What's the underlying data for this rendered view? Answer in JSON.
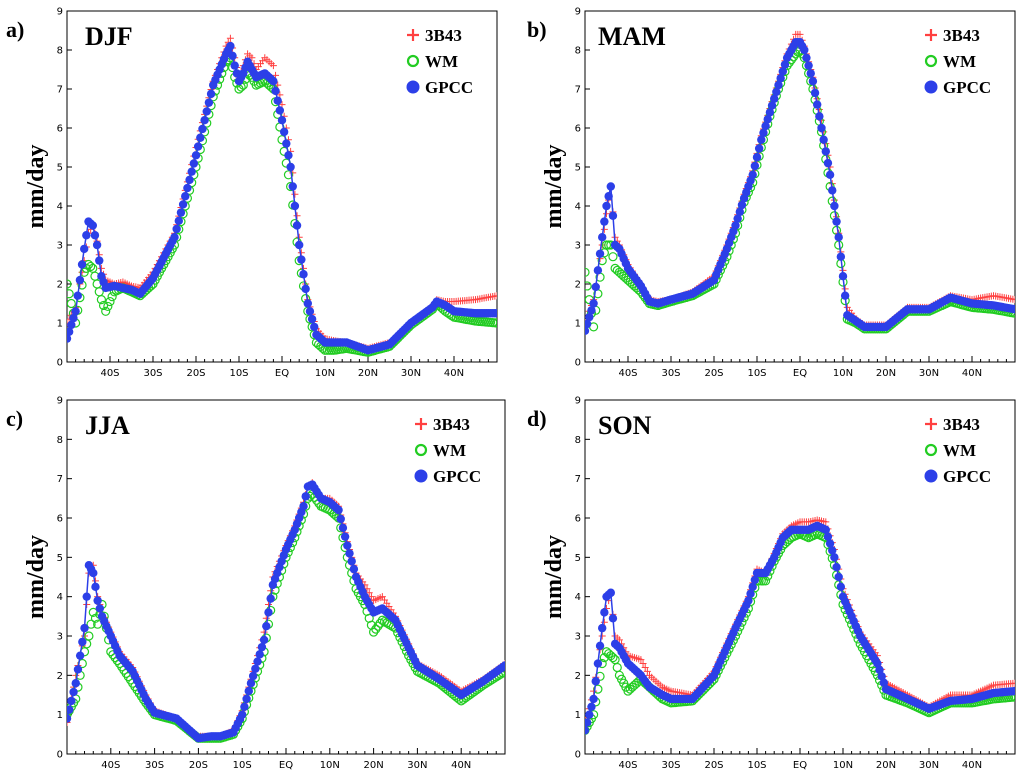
{
  "chart_data": [
    {
      "type": "scatter",
      "panel_label": "a)",
      "title": "DJF",
      "ylabel": "mm/day",
      "xlabel": "",
      "xlim": [
        -50,
        50
      ],
      "ylim": [
        0,
        9
      ],
      "x_ticks": [
        -40,
        -30,
        -20,
        -10,
        0,
        10,
        20,
        30,
        40
      ],
      "x_tick_labels": [
        "40S",
        "30S",
        "20S",
        "10S",
        "EQ",
        "10N",
        "20N",
        "30N",
        "40N"
      ],
      "y_ticks": [
        0,
        1,
        2,
        3,
        4,
        5,
        6,
        7,
        8,
        9
      ],
      "y_tick_labels": [
        "0",
        "1",
        "2",
        "3",
        "4",
        "5",
        "6",
        "7",
        "8",
        "9"
      ],
      "legend_position": "top-right",
      "x": [
        -50,
        -48,
        -46,
        -45,
        -44,
        -43,
        -42,
        -41,
        -39,
        -37,
        -35,
        -33,
        -30,
        -25,
        -20,
        -16,
        -13,
        -12,
        -11,
        -10,
        -9,
        -8,
        -7,
        -6,
        -4,
        -2,
        0,
        2,
        4,
        6,
        8,
        10,
        12,
        15,
        20,
        25,
        30,
        35,
        36,
        38,
        40,
        45,
        50
      ],
      "series": [
        {
          "name": "3B43",
          "color": "#ff4040",
          "marker": "plus",
          "values": [
            1.0,
            1.4,
            2.6,
            3.3,
            3.5,
            3.1,
            2.4,
            2.1,
            2.0,
            2.05,
            1.95,
            1.9,
            2.3,
            3.3,
            5.5,
            7.2,
            8.1,
            8.3,
            7.8,
            7.3,
            7.6,
            7.9,
            7.8,
            7.5,
            7.8,
            7.6,
            6.6,
            5.4,
            3.2,
            1.6,
            0.85,
            0.6,
            0.55,
            0.5,
            0.35,
            0.5,
            1.0,
            1.45,
            1.6,
            1.55,
            1.55,
            1.6,
            1.7
          ]
        },
        {
          "name": "WM",
          "color": "#22cc22",
          "marker": "circle-open",
          "values": [
            2.0,
            1.0,
            2.3,
            2.5,
            2.4,
            2.0,
            1.6,
            1.3,
            1.8,
            1.9,
            1.8,
            1.7,
            2.0,
            3.0,
            5.0,
            6.8,
            7.7,
            7.8,
            7.3,
            7.0,
            7.1,
            7.4,
            7.3,
            7.1,
            7.2,
            7.0,
            5.7,
            4.5,
            2.6,
            1.3,
            0.5,
            0.3,
            0.3,
            0.35,
            0.25,
            0.4,
            0.95,
            1.35,
            1.5,
            1.3,
            1.15,
            1.05,
            1.0
          ]
        },
        {
          "name": "GPCC",
          "color": "#2c3fe8",
          "marker": "circle-filled",
          "values": [
            0.6,
            1.3,
            2.9,
            3.6,
            3.5,
            3.0,
            2.2,
            1.9,
            1.95,
            1.9,
            1.85,
            1.75,
            2.15,
            3.2,
            5.3,
            7.1,
            7.9,
            8.1,
            7.6,
            7.2,
            7.4,
            7.7,
            7.5,
            7.3,
            7.4,
            7.2,
            6.2,
            5.0,
            3.0,
            1.5,
            0.7,
            0.5,
            0.5,
            0.5,
            0.3,
            0.45,
            1.0,
            1.4,
            1.55,
            1.45,
            1.3,
            1.25,
            1.25
          ]
        }
      ]
    },
    {
      "type": "scatter",
      "panel_label": "b)",
      "title": "MAM",
      "ylabel": "mm/day",
      "xlabel": "",
      "xlim": [
        -50,
        50
      ],
      "ylim": [
        0,
        9
      ],
      "x_ticks": [
        -40,
        -30,
        -20,
        -10,
        0,
        10,
        20,
        30,
        40
      ],
      "x_tick_labels": [
        "40S",
        "30S",
        "20S",
        "10S",
        "EQ",
        "10N",
        "20N",
        "30N",
        "40N"
      ],
      "y_ticks": [
        0,
        1,
        2,
        3,
        4,
        5,
        6,
        7,
        8,
        9
      ],
      "y_tick_labels": [
        "0",
        "1",
        "2",
        "3",
        "4",
        "5",
        "6",
        "7",
        "8",
        "9"
      ],
      "legend_position": "top-right",
      "x": [
        -50,
        -48,
        -46,
        -45,
        -44,
        -43,
        -42,
        -40,
        -37,
        -35,
        -33,
        -30,
        -25,
        -20,
        -17,
        -15,
        -13,
        -11,
        -9,
        -7,
        -5,
        -3,
        -1,
        0,
        1,
        3,
        5,
        7,
        9,
        11,
        13,
        15,
        20,
        25,
        30,
        35,
        40,
        45,
        50
      ],
      "series": [
        {
          "name": "3B43",
          "color": "#ff4040",
          "marker": "plus",
          "values": [
            1.0,
            1.6,
            3.0,
            3.8,
            4.5,
            3.2,
            3.0,
            2.5,
            2.0,
            1.6,
            1.55,
            1.6,
            1.8,
            2.2,
            3.0,
            3.6,
            4.3,
            4.9,
            5.8,
            6.5,
            7.2,
            7.9,
            8.4,
            8.4,
            8.1,
            7.3,
            6.2,
            5.0,
            3.3,
            1.4,
            1.1,
            0.95,
            0.95,
            1.4,
            1.4,
            1.7,
            1.6,
            1.7,
            1.6
          ]
        },
        {
          "name": "WM",
          "color": "#22cc22",
          "marker": "circle-open",
          "values": [
            2.3,
            0.9,
            2.6,
            3.0,
            3.0,
            2.4,
            2.3,
            2.1,
            1.8,
            1.5,
            1.45,
            1.55,
            1.7,
            2.0,
            2.7,
            3.3,
            4.1,
            4.6,
            5.5,
            6.3,
            7.0,
            7.6,
            7.9,
            8.0,
            7.8,
            7.0,
            5.9,
            4.5,
            3.0,
            1.1,
            1.0,
            0.85,
            0.85,
            1.3,
            1.3,
            1.55,
            1.4,
            1.35,
            1.25
          ]
        },
        {
          "name": "GPCC",
          "color": "#2c3fe8",
          "marker": "circle-filled",
          "values": [
            0.8,
            1.5,
            3.2,
            4.0,
            4.5,
            3.0,
            2.9,
            2.4,
            1.95,
            1.55,
            1.5,
            1.6,
            1.75,
            2.1,
            2.9,
            3.5,
            4.2,
            4.8,
            5.7,
            6.4,
            7.1,
            7.8,
            8.2,
            8.2,
            8.0,
            7.2,
            6.0,
            4.8,
            3.2,
            1.2,
            1.05,
            0.9,
            0.9,
            1.35,
            1.35,
            1.65,
            1.5,
            1.45,
            1.35
          ]
        }
      ]
    },
    {
      "type": "scatter",
      "panel_label": "c)",
      "title": "JJA",
      "ylabel": "mm/day",
      "xlabel": "",
      "xlim": [
        -50,
        50
      ],
      "ylim": [
        0,
        9
      ],
      "x_ticks": [
        -40,
        -30,
        -20,
        -10,
        0,
        10,
        20,
        30,
        40
      ],
      "x_tick_labels": [
        "40S",
        "30S",
        "20S",
        "10S",
        "EQ",
        "10N",
        "20N",
        "30N",
        "40N"
      ],
      "y_ticks": [
        0,
        1,
        2,
        3,
        4,
        5,
        6,
        7,
        8,
        9
      ],
      "y_tick_labels": [
        "0",
        "1",
        "2",
        "3",
        "4",
        "5",
        "6",
        "7",
        "8",
        "9"
      ],
      "legend_position": "top-right",
      "x": [
        -50,
        -48,
        -46,
        -45,
        -44,
        -43,
        -42,
        -40,
        -38,
        -35,
        -32,
        -30,
        -25,
        -20,
        -17,
        -15,
        -12,
        -10,
        -8,
        -5,
        -3,
        0,
        2,
        4,
        5,
        6,
        8,
        10,
        12,
        14,
        16,
        18,
        20,
        22,
        25,
        28,
        30,
        35,
        40,
        45,
        50
      ],
      "series": [
        {
          "name": "3B43",
          "color": "#ff4040",
          "marker": "plus",
          "values": [
            0.8,
            2.0,
            3.0,
            4.6,
            4.8,
            4.0,
            3.6,
            3.1,
            2.6,
            2.2,
            1.5,
            1.1,
            0.9,
            0.45,
            0.45,
            0.45,
            0.6,
            1.1,
            1.9,
            3.1,
            4.5,
            5.3,
            5.8,
            6.4,
            6.8,
            6.9,
            6.5,
            6.5,
            6.3,
            5.4,
            4.6,
            4.3,
            3.9,
            4.0,
            3.5,
            2.8,
            2.3,
            2.0,
            1.6,
            1.9,
            2.3
          ]
        },
        {
          "name": "WM",
          "color": "#22cc22",
          "marker": "circle-open",
          "values": [
            1.0,
            1.4,
            2.6,
            3.0,
            3.6,
            3.3,
            3.8,
            2.6,
            2.3,
            1.8,
            1.3,
            1.0,
            0.85,
            0.4,
            0.4,
            0.4,
            0.5,
            0.9,
            1.6,
            2.6,
            4.0,
            5.0,
            5.5,
            6.1,
            6.5,
            6.6,
            6.3,
            6.2,
            6.0,
            5.0,
            4.2,
            3.8,
            3.1,
            3.4,
            3.2,
            2.5,
            2.1,
            1.8,
            1.35,
            1.75,
            2.1
          ]
        },
        {
          "name": "GPCC",
          "color": "#2c3fe8",
          "marker": "circle-filled",
          "values": [
            0.9,
            1.8,
            3.2,
            4.8,
            4.6,
            3.9,
            3.5,
            3.0,
            2.5,
            2.1,
            1.4,
            1.05,
            0.9,
            0.4,
            0.45,
            0.45,
            0.55,
            1.0,
            1.8,
            2.9,
            4.3,
            5.2,
            5.7,
            6.3,
            6.8,
            6.85,
            6.5,
            6.4,
            6.2,
            5.3,
            4.5,
            4.0,
            3.6,
            3.7,
            3.4,
            2.7,
            2.25,
            1.9,
            1.5,
            1.85,
            2.25
          ]
        }
      ]
    },
    {
      "type": "scatter",
      "panel_label": "d)",
      "title": "SON",
      "ylabel": "mm/day",
      "xlabel": "",
      "xlim": [
        -50,
        50
      ],
      "ylim": [
        0,
        9
      ],
      "x_ticks": [
        -40,
        -30,
        -20,
        -10,
        0,
        10,
        20,
        30,
        40
      ],
      "x_tick_labels": [
        "40S",
        "30S",
        "20S",
        "10S",
        "EQ",
        "10N",
        "20N",
        "30N",
        "40N"
      ],
      "y_ticks": [
        0,
        1,
        2,
        3,
        4,
        5,
        6,
        7,
        8,
        9
      ],
      "y_tick_labels": [
        "0",
        "1",
        "2",
        "3",
        "4",
        "5",
        "6",
        "7",
        "8",
        "9"
      ],
      "legend_position": "top-right",
      "x": [
        -50,
        -48,
        -46,
        -45,
        -44,
        -43,
        -42,
        -40,
        -37,
        -35,
        -32,
        -30,
        -25,
        -20,
        -15,
        -12,
        -10,
        -8,
        -6,
        -4,
        -2,
        0,
        2,
        4,
        6,
        8,
        10,
        14,
        18,
        20,
        25,
        30,
        35,
        40,
        45,
        50
      ],
      "series": [
        {
          "name": "3B43",
          "color": "#ff4040",
          "marker": "plus",
          "values": [
            0.7,
            1.6,
            3.0,
            3.7,
            4.1,
            3.0,
            2.9,
            2.5,
            2.4,
            2.0,
            1.7,
            1.6,
            1.5,
            2.1,
            3.3,
            4.0,
            4.7,
            4.6,
            5.1,
            5.6,
            5.8,
            5.9,
            5.9,
            5.95,
            5.9,
            5.2,
            4.2,
            3.1,
            2.5,
            1.8,
            1.5,
            1.2,
            1.5,
            1.5,
            1.75,
            1.8
          ]
        },
        {
          "name": "WM",
          "color": "#22cc22",
          "marker": "circle-open",
          "values": [
            0.6,
            1.0,
            2.3,
            2.6,
            2.5,
            2.4,
            2.0,
            1.6,
            1.9,
            1.7,
            1.4,
            1.3,
            1.35,
            1.9,
            3.0,
            3.7,
            4.4,
            4.4,
            4.9,
            5.3,
            5.5,
            5.6,
            5.5,
            5.6,
            5.5,
            4.8,
            3.8,
            2.8,
            2.0,
            1.5,
            1.3,
            1.05,
            1.3,
            1.3,
            1.4,
            1.45
          ]
        },
        {
          "name": "GPCC",
          "color": "#2c3fe8",
          "marker": "circle-filled",
          "values": [
            0.6,
            1.4,
            3.2,
            4.0,
            4.1,
            2.8,
            2.7,
            2.3,
            2.0,
            1.7,
            1.5,
            1.4,
            1.4,
            2.0,
            3.2,
            3.9,
            4.6,
            4.6,
            5.0,
            5.5,
            5.7,
            5.7,
            5.7,
            5.8,
            5.7,
            5.0,
            4.0,
            3.0,
            2.3,
            1.65,
            1.4,
            1.15,
            1.35,
            1.4,
            1.55,
            1.6
          ]
        }
      ]
    }
  ]
}
